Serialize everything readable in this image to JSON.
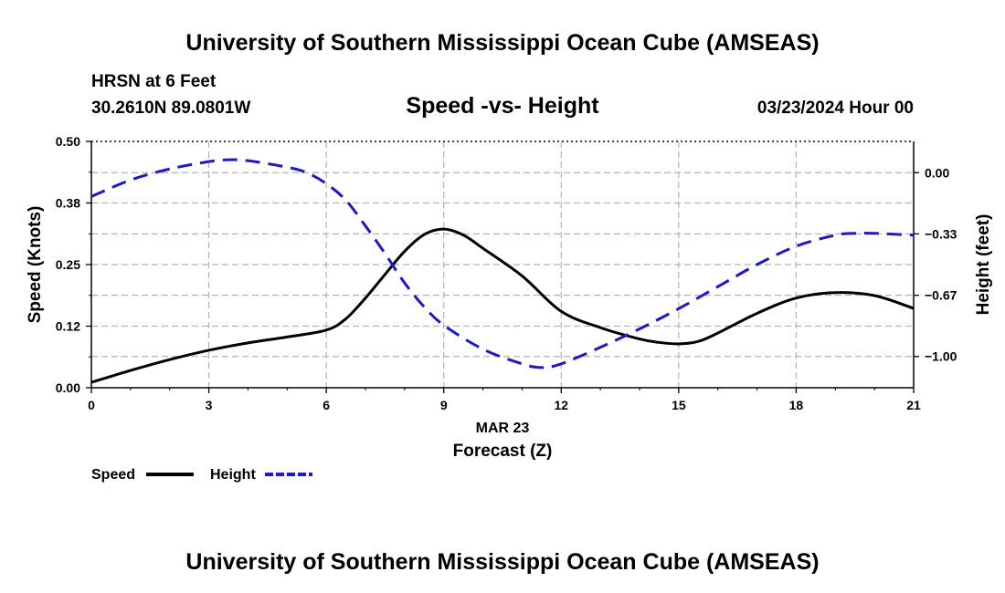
{
  "header": {
    "title": "University of Southern Mississippi Ocean Cube (AMSEAS)",
    "station": "HRSN at 6 Feet",
    "coords": "30.2610N  89.0801W",
    "chart_title": "Speed -vs- Height",
    "datetime": "03/23/2024 Hour 00"
  },
  "footer": {
    "title": "University of Southern Mississippi Ocean Cube (AMSEAS)"
  },
  "colors": {
    "speed": "#000000",
    "height": "#1a1acc",
    "grid": "#b4b4b4"
  },
  "chart_data": {
    "type": "line",
    "title": "Speed -vs- Height",
    "xlabel": "Forecast (Z)",
    "xdate_label": "MAR 23",
    "ylabel_left": "Speed (Knots)",
    "ylabel_right": "Height (feet)",
    "xlim": [
      0,
      21
    ],
    "ylim_left": [
      0,
      0.5
    ],
    "ylim_right": [
      -1.17,
      0.17
    ],
    "grid": true,
    "legend_position": "bottom-left",
    "x_ticks": [
      {
        "value": 0,
        "label": "0"
      },
      {
        "value": 3,
        "label": "3"
      },
      {
        "value": 6,
        "label": "6"
      },
      {
        "value": 9,
        "label": "9"
      },
      {
        "value": 12,
        "label": "12"
      },
      {
        "value": 15,
        "label": "15"
      },
      {
        "value": 18,
        "label": "18"
      },
      {
        "value": 21,
        "label": "21"
      }
    ],
    "y_left_ticks": [
      {
        "value": 0.0,
        "label": "0.00"
      },
      {
        "value": 0.125,
        "label": "0.12"
      },
      {
        "value": 0.25,
        "label": "0.25"
      },
      {
        "value": 0.375,
        "label": "0.38"
      },
      {
        "value": 0.5,
        "label": "0.50"
      }
    ],
    "y_right_ticks": [
      {
        "value": 0.0,
        "label": "0.00"
      },
      {
        "value": -0.333,
        "label": "−0.33"
      },
      {
        "value": -0.667,
        "label": "−0.67"
      },
      {
        "value": -1.0,
        "label": "−1.00"
      }
    ],
    "series": [
      {
        "name": "Speed",
        "axis": "left",
        "style": "solid",
        "x": [
          0,
          1,
          2,
          3,
          4,
          5,
          6,
          6.5,
          7,
          7.5,
          8,
          8.5,
          9,
          9.5,
          10,
          11,
          12,
          13,
          14,
          14.5,
          15,
          15.5,
          16,
          17,
          18,
          19,
          20,
          21
        ],
        "y": [
          0.011,
          0.035,
          0.057,
          0.076,
          0.091,
          0.103,
          0.117,
          0.14,
          0.182,
          0.23,
          0.277,
          0.311,
          0.322,
          0.31,
          0.283,
          0.227,
          0.155,
          0.122,
          0.099,
          0.092,
          0.089,
          0.094,
          0.111,
          0.151,
          0.182,
          0.193,
          0.187,
          0.161
        ]
      },
      {
        "name": "Height",
        "axis": "right",
        "style": "dashed",
        "x": [
          0,
          1,
          2,
          3,
          3.5,
          4,
          5,
          5.5,
          6,
          6.5,
          7,
          7.5,
          8,
          8.5,
          9,
          10,
          11,
          11.5,
          12,
          13,
          14,
          15,
          16,
          17,
          18,
          19,
          19.5,
          20,
          21
        ],
        "y": [
          -0.13,
          -0.04,
          0.02,
          0.06,
          0.07,
          0.065,
          0.03,
          0.0,
          -0.06,
          -0.15,
          -0.29,
          -0.44,
          -0.6,
          -0.73,
          -0.83,
          -0.96,
          -1.04,
          -1.06,
          -1.04,
          -0.95,
          -0.85,
          -0.74,
          -0.62,
          -0.5,
          -0.4,
          -0.34,
          -0.33,
          -0.33,
          -0.34
        ]
      }
    ],
    "legend": [
      {
        "label": "Speed",
        "style": "solid"
      },
      {
        "label": "Height",
        "style": "dashed"
      }
    ]
  }
}
